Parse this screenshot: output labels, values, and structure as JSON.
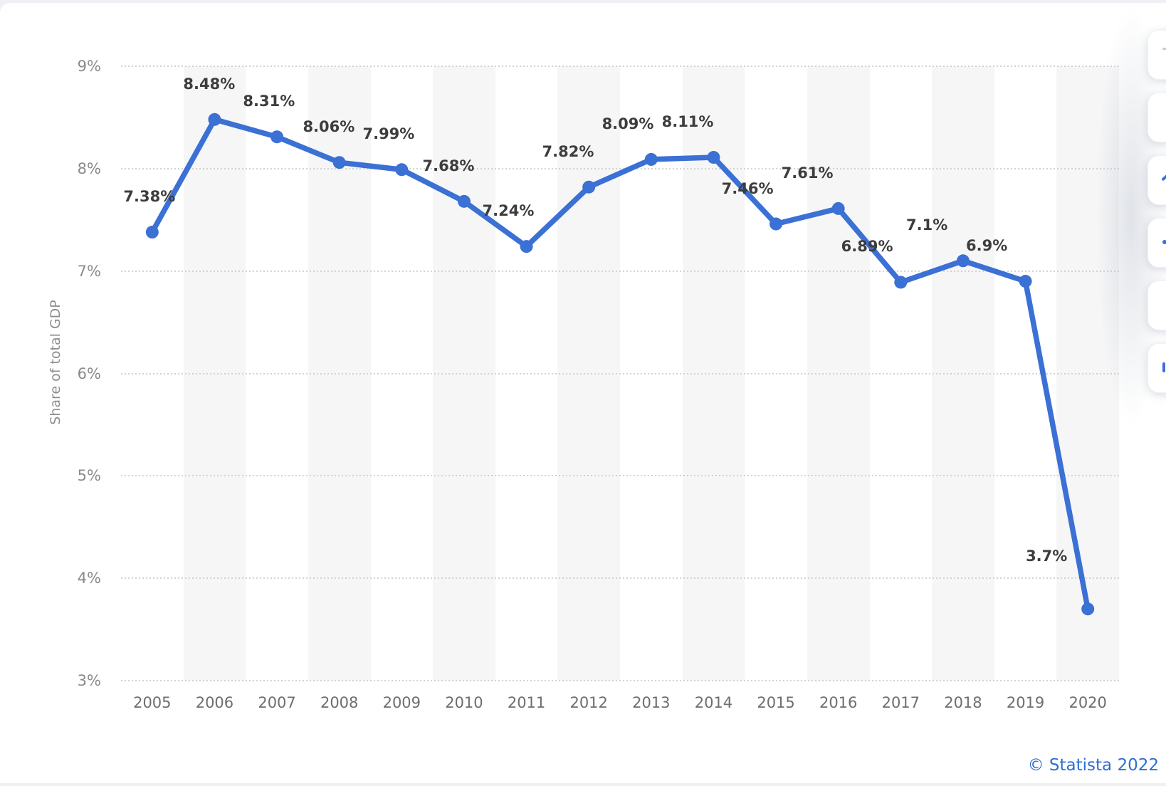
{
  "page": {
    "background_color": "#eef0f3",
    "card_color": "#ffffff",
    "credit": "© Statista 2022",
    "credit_color": "#2e6fd2"
  },
  "side_toolbar": {
    "button_count": 6,
    "buttons": [
      {
        "fragment": "gray-dash"
      },
      {
        "fragment": "none"
      },
      {
        "fragment": "blue-diagonal"
      },
      {
        "fragment": "blue-dot"
      },
      {
        "fragment": "none"
      },
      {
        "fragment": "blue-bar"
      }
    ]
  },
  "chart_data": {
    "type": "line",
    "title": "",
    "categories": [
      "2005",
      "2006",
      "2007",
      "2008",
      "2009",
      "2010",
      "2011",
      "2012",
      "2013",
      "2014",
      "2015",
      "2016",
      "2017",
      "2018",
      "2019",
      "2020"
    ],
    "values": [
      7.38,
      8.48,
      8.31,
      8.06,
      7.99,
      7.68,
      7.24,
      7.82,
      8.09,
      8.11,
      7.46,
      7.61,
      6.89,
      7.1,
      6.9,
      3.7
    ],
    "point_labels": [
      "7.38%",
      "8.48%",
      "8.31%",
      "8.06%",
      "7.99%",
      "7.68%",
      "7.24%",
      "7.82%",
      "8.09%",
      "8.11%",
      "7.46%",
      "7.61%",
      "6.89%",
      "7.1%",
      "6.9%",
      "3.7%"
    ],
    "xlabel": "",
    "ylabel": "Share of total GDP",
    "y_ticks": [
      "9%",
      "8%",
      "7%",
      "6%",
      "5%",
      "4%",
      "3%"
    ],
    "ylim": [
      3,
      9
    ],
    "grid": "horizontal-dotted",
    "legend": "none",
    "line_color": "#3b70d4",
    "marker": "circle",
    "band_color": "#f6f6f7",
    "band_pattern": "alternating columns shaded starting at 2006"
  }
}
